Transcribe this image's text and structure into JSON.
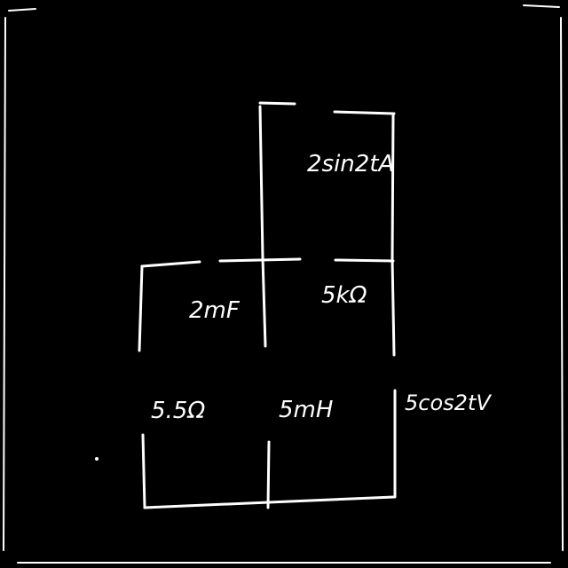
{
  "diagram": {
    "background_color": "#000000",
    "ink_color": "#ffffff",
    "components": {
      "current_source": "2sin2tA",
      "capacitor": "2mF",
      "resistor_top": "5kΩ",
      "resistor_left": "5.5Ω",
      "inductor": "5mH",
      "voltage_source": "5cos2tV"
    }
  }
}
